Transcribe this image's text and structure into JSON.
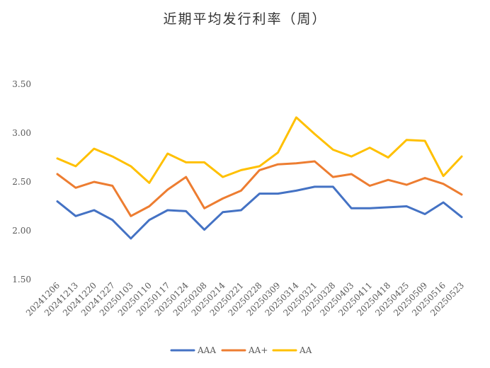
{
  "chart_data": {
    "type": "line",
    "title": "近期平均发行利率（周）",
    "xlabel": "",
    "ylabel": "",
    "ylim": [
      1.5,
      3.5
    ],
    "yticks": [
      "1.50",
      "2.00",
      "2.50",
      "3.00",
      "3.50"
    ],
    "grid": false,
    "legend_position": "bottom",
    "categories": [
      "20241206",
      "20241213",
      "20241220",
      "20241227",
      "20250103",
      "20250110",
      "20250117",
      "20250124",
      "20250208",
      "20250214",
      "20250221",
      "20250228",
      "20250309",
      "20250314",
      "20250321",
      "20250328",
      "20250403",
      "20250411",
      "20250418",
      "20250425",
      "20250509",
      "20250516",
      "20250523"
    ],
    "series": [
      {
        "name": "AAA",
        "color": "#4472C4",
        "values": [
          2.3,
          2.15,
          2.21,
          2.11,
          1.92,
          2.11,
          2.21,
          2.2,
          2.01,
          2.19,
          2.21,
          2.38,
          2.38,
          2.41,
          2.45,
          2.45,
          2.23,
          2.23,
          2.24,
          2.25,
          2.17,
          2.29,
          2.14
        ]
      },
      {
        "name": "AA+",
        "color": "#ED7D31",
        "values": [
          2.58,
          2.44,
          2.5,
          2.46,
          2.15,
          2.25,
          2.42,
          2.55,
          2.23,
          2.33,
          2.41,
          2.62,
          2.68,
          2.69,
          2.71,
          2.55,
          2.58,
          2.46,
          2.52,
          2.47,
          2.54,
          2.48,
          2.37
        ]
      },
      {
        "name": "AA",
        "color": "#FFC000",
        "values": [
          2.74,
          2.66,
          2.84,
          2.76,
          2.66,
          2.49,
          2.79,
          2.7,
          2.7,
          2.55,
          2.62,
          2.66,
          2.8,
          3.16,
          2.99,
          2.83,
          2.76,
          2.85,
          2.75,
          2.93,
          2.92,
          2.56,
          2.76
        ]
      }
    ]
  }
}
